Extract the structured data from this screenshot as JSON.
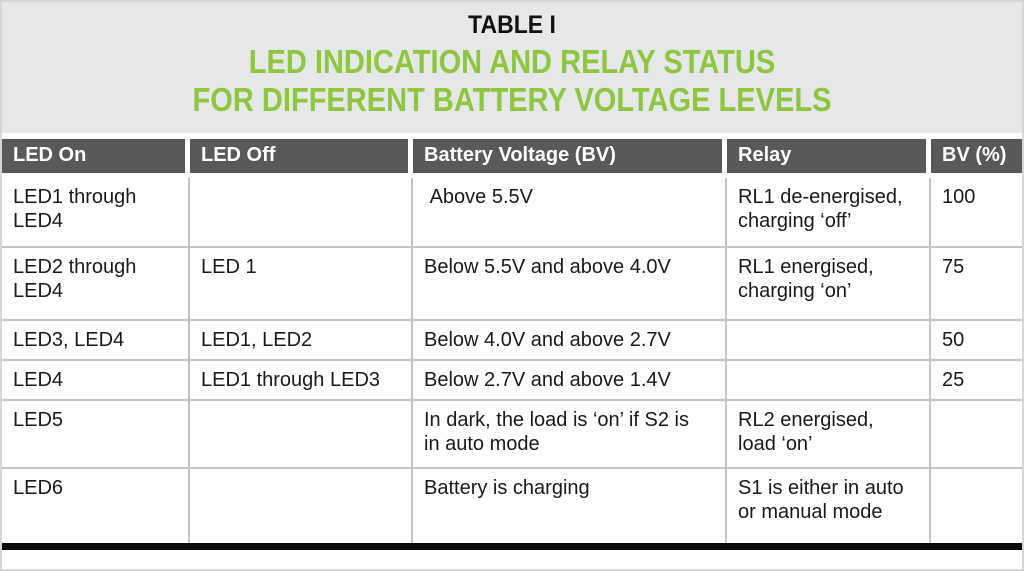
{
  "title": {
    "table_number": "TABLE I",
    "heading_line1": "LED INDICATION AND RELAY STATUS",
    "heading_line2": "FOR DIFFERENT BATTERY VOLTAGE LEVELS"
  },
  "colors": {
    "accent_green": "#8DC63F",
    "header_bg": "#58595B",
    "header_text": "#FFFFFF",
    "title_band_bg": "#E6E7E8",
    "cell_border": "#C2C4C6",
    "bottom_bar": "#0A0A0A",
    "body_text": "#1A1A1A"
  },
  "table": {
    "columns": [
      "LED On",
      "LED Off",
      "Battery Voltage (BV)",
      "Relay",
      "BV (%)"
    ],
    "rows": [
      [
        "LED1 through LED4",
        "",
        " Above 5.5V",
        "RL1 de-energised, charging ‘off’",
        "100"
      ],
      [
        "LED2 through LED4",
        "LED 1",
        "Below 5.5V and above 4.0V",
        "RL1 energised, charging ‘on’",
        "75"
      ],
      [
        "LED3, LED4",
        "LED1, LED2",
        "Below 4.0V and above 2.7V",
        "",
        "50"
      ],
      [
        "LED4",
        "LED1 through LED3",
        "Below 2.7V and above 1.4V",
        "",
        "25"
      ],
      [
        "LED5",
        "",
        "In dark, the load is ‘on’ if S2 is in auto mode",
        "RL2 energised, load ‘on’",
        ""
      ],
      [
        "LED6",
        "",
        "Battery is charging",
        "S1 is either in auto or manual mode",
        ""
      ]
    ]
  }
}
